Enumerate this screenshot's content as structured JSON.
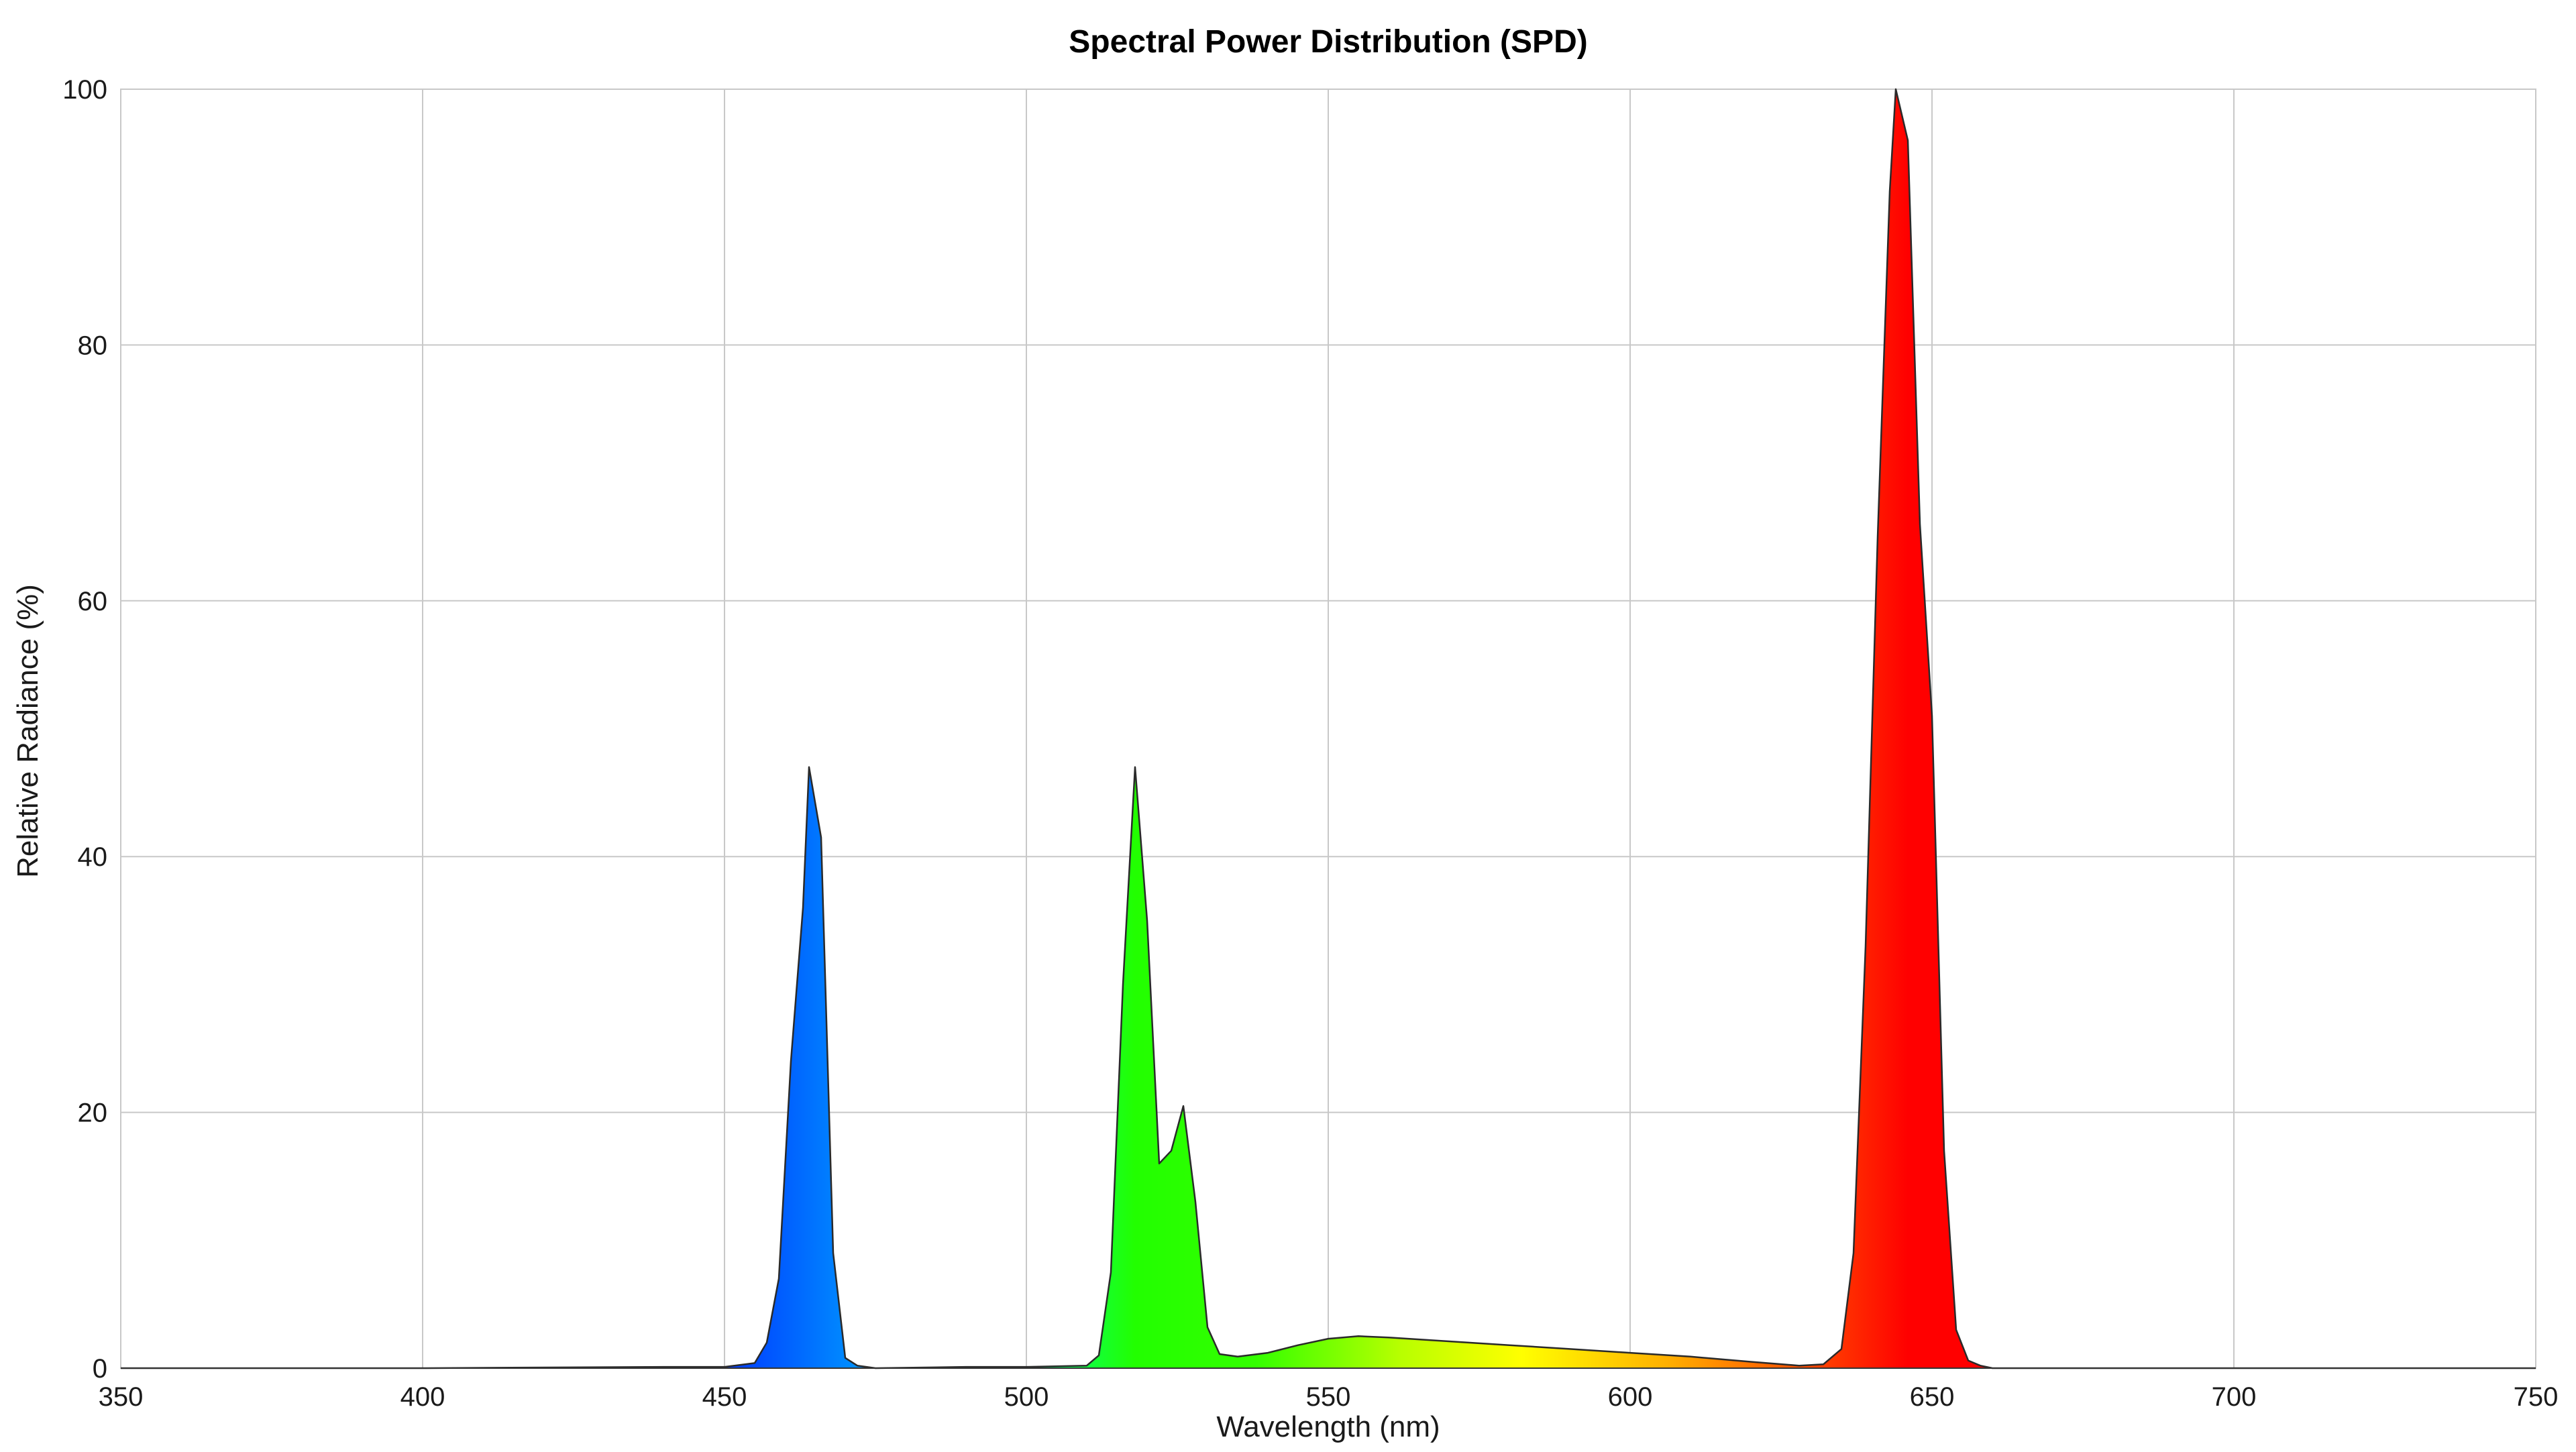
{
  "chart_data": {
    "type": "area",
    "title": "Spectral Power Distribution (SPD)",
    "xlabel": "Wavelength (nm)",
    "ylabel": "Relative Radiance (%)",
    "xlim": [
      350,
      750
    ],
    "ylim": [
      0,
      100
    ],
    "x_ticks": [
      350,
      400,
      450,
      500,
      550,
      600,
      650,
      700,
      750
    ],
    "y_ticks": [
      0,
      20,
      40,
      60,
      80,
      100
    ],
    "grid": true,
    "fill": "visible-spectrum gradient by wavelength",
    "series": [
      {
        "points": [
          [
            350,
            0
          ],
          [
            380,
            0
          ],
          [
            400,
            0
          ],
          [
            440,
            0.1
          ],
          [
            450,
            0.1
          ],
          [
            455,
            0.4
          ],
          [
            457,
            2
          ],
          [
            459,
            7
          ],
          [
            461,
            24
          ],
          [
            463,
            36
          ],
          [
            464,
            47
          ],
          [
            466,
            41.5
          ],
          [
            468,
            9
          ],
          [
            470,
            0.8
          ],
          [
            472,
            0.2
          ],
          [
            475,
            0
          ],
          [
            490,
            0.1
          ],
          [
            500,
            0.1
          ],
          [
            510,
            0.2
          ],
          [
            512,
            1
          ],
          [
            514,
            7.5
          ],
          [
            516,
            30
          ],
          [
            518,
            47
          ],
          [
            520,
            35
          ],
          [
            522,
            16
          ],
          [
            524,
            17
          ],
          [
            526,
            20.5
          ],
          [
            528,
            13
          ],
          [
            530,
            3.2
          ],
          [
            532,
            1.1
          ],
          [
            535,
            0.9
          ],
          [
            540,
            1.2
          ],
          [
            545,
            1.8
          ],
          [
            550,
            2.3
          ],
          [
            555,
            2.5
          ],
          [
            560,
            2.4
          ],
          [
            570,
            2.1
          ],
          [
            580,
            1.8
          ],
          [
            590,
            1.5
          ],
          [
            600,
            1.2
          ],
          [
            610,
            0.9
          ],
          [
            620,
            0.5
          ],
          [
            628,
            0.2
          ],
          [
            632,
            0.3
          ],
          [
            635,
            1.5
          ],
          [
            637,
            9
          ],
          [
            639,
            33
          ],
          [
            641,
            65
          ],
          [
            643,
            92
          ],
          [
            644,
            100
          ],
          [
            646,
            96
          ],
          [
            648,
            66
          ],
          [
            650,
            51
          ],
          [
            652,
            17
          ],
          [
            654,
            3
          ],
          [
            656,
            0.6
          ],
          [
            658,
            0.2
          ],
          [
            660,
            0
          ],
          [
            700,
            0
          ],
          [
            750,
            0
          ]
        ]
      }
    ]
  }
}
